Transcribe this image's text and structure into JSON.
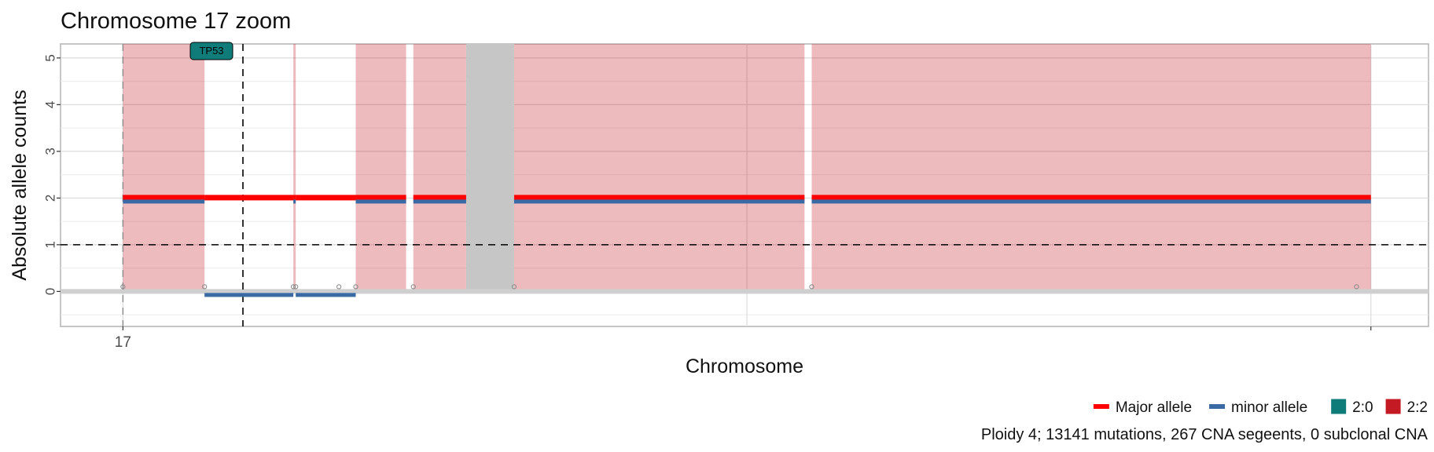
{
  "chart_data": {
    "type": "segment",
    "title": "Chromosome 17 zoom",
    "xlabel": "Chromosome",
    "ylabel": "Absolute allele counts",
    "x_tick_labels": [
      "17"
    ],
    "y_ticks": [
      0,
      1,
      2,
      3,
      4,
      5
    ],
    "ylim": [
      -0.75,
      5.3
    ],
    "xlim": [
      -1.3,
      27.2
    ],
    "x_unit": "approximate position along chromosome 17 (Mb)",
    "ploidy_line_y": 1,
    "gene_marker": {
      "label": "TP53",
      "x": 2.5,
      "color": "#0f7c7a"
    },
    "segments": [
      {
        "start": 0.0,
        "end": 1.7,
        "major": 2,
        "minor": 2,
        "karyotype": "2:2",
        "shaded": true
      },
      {
        "start": 1.7,
        "end": 3.55,
        "major": 2,
        "minor": 0,
        "karyotype": "2:0",
        "shaded": false
      },
      {
        "start": 3.55,
        "end": 3.6,
        "major": 2,
        "minor": 2,
        "karyotype": "2:2",
        "shaded": true
      },
      {
        "start": 3.6,
        "end": 4.85,
        "major": 2,
        "minor": 0,
        "karyotype": "2:0",
        "shaded": false
      },
      {
        "start": 4.85,
        "end": 5.9,
        "major": 2,
        "minor": 2,
        "karyotype": "2:2",
        "shaded": true
      },
      {
        "start": 6.05,
        "end": 7.15,
        "major": 2,
        "minor": 2,
        "karyotype": "2:2",
        "shaded": true
      },
      {
        "start": 8.15,
        "end": 14.2,
        "major": 2,
        "minor": 2,
        "karyotype": "2:2",
        "shaded": true
      },
      {
        "start": 14.35,
        "end": 26.0,
        "major": 2,
        "minor": 2,
        "karyotype": "2:2",
        "shaded": true
      }
    ],
    "no_data_regions": [
      {
        "start": 7.15,
        "end": 8.15
      }
    ],
    "breakpoints": [
      0.0,
      1.7,
      3.55,
      3.6,
      4.5,
      4.85,
      6.05,
      8.15,
      14.35,
      25.7
    ],
    "legend": {
      "placement": "bottom-right",
      "allele_items": [
        {
          "label": "Major allele",
          "color": "#ff0000"
        },
        {
          "label": "minor allele",
          "color": "#3a6aa4"
        }
      ],
      "karyotype_items": [
        {
          "label": "2:0",
          "color": "#0f7c7a"
        },
        {
          "label": "2:2",
          "color": "#c41a23"
        }
      ]
    },
    "caption": "Ploidy 4; 13141 mutations, 267 CNA segeents, 0 subclonal CNA",
    "grid": true
  }
}
